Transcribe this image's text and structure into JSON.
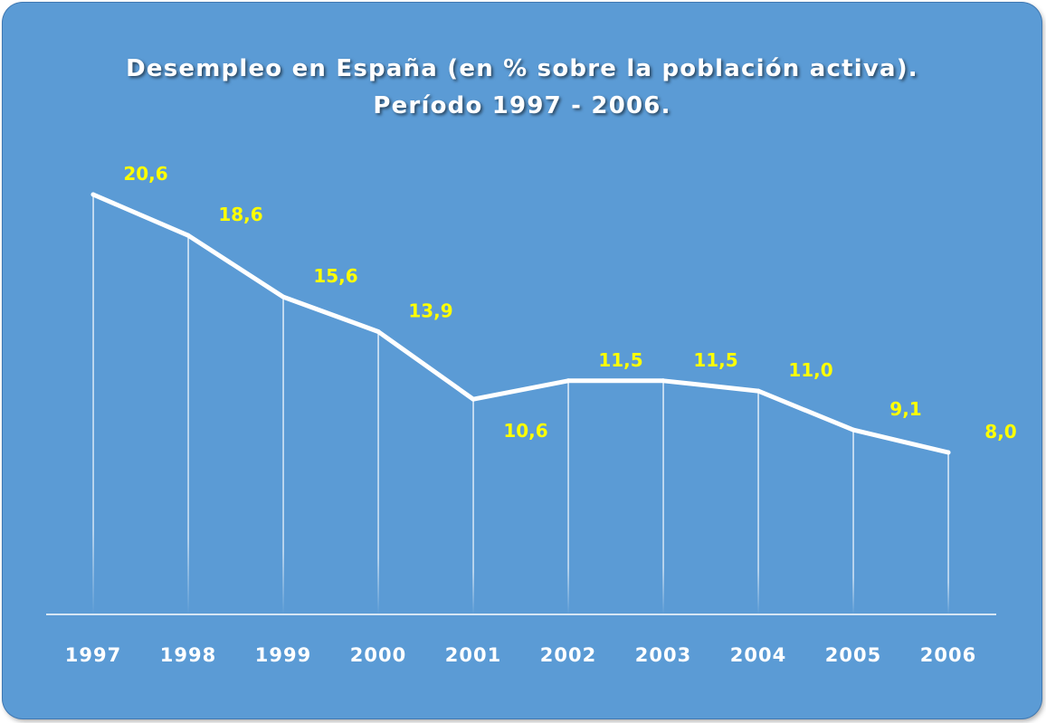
{
  "chart_data": {
    "type": "line",
    "title": "Desempleo en España (en % sobre la población activa).",
    "subtitle": "Período 1997 - 2006.",
    "categories": [
      "1997",
      "1998",
      "1999",
      "2000",
      "2001",
      "2002",
      "2003",
      "2004",
      "2005",
      "2006"
    ],
    "values": [
      20.6,
      18.6,
      15.6,
      13.9,
      10.6,
      11.5,
      11.5,
      11.0,
      9.1,
      8.0
    ],
    "data_labels": [
      "20,6",
      "18,6",
      "15,6",
      "13,9",
      "10,6",
      "11,5",
      "11,5",
      "11,0",
      "9,1",
      "8,0"
    ],
    "xlabel": "",
    "ylabel": "",
    "ylim": [
      -8,
      22
    ],
    "grid": false,
    "drop_lines": true,
    "colors": {
      "background": "#5b9bd5",
      "line": "#ffffff",
      "data_labels": "#ffff00",
      "text": "#ffffff"
    }
  }
}
